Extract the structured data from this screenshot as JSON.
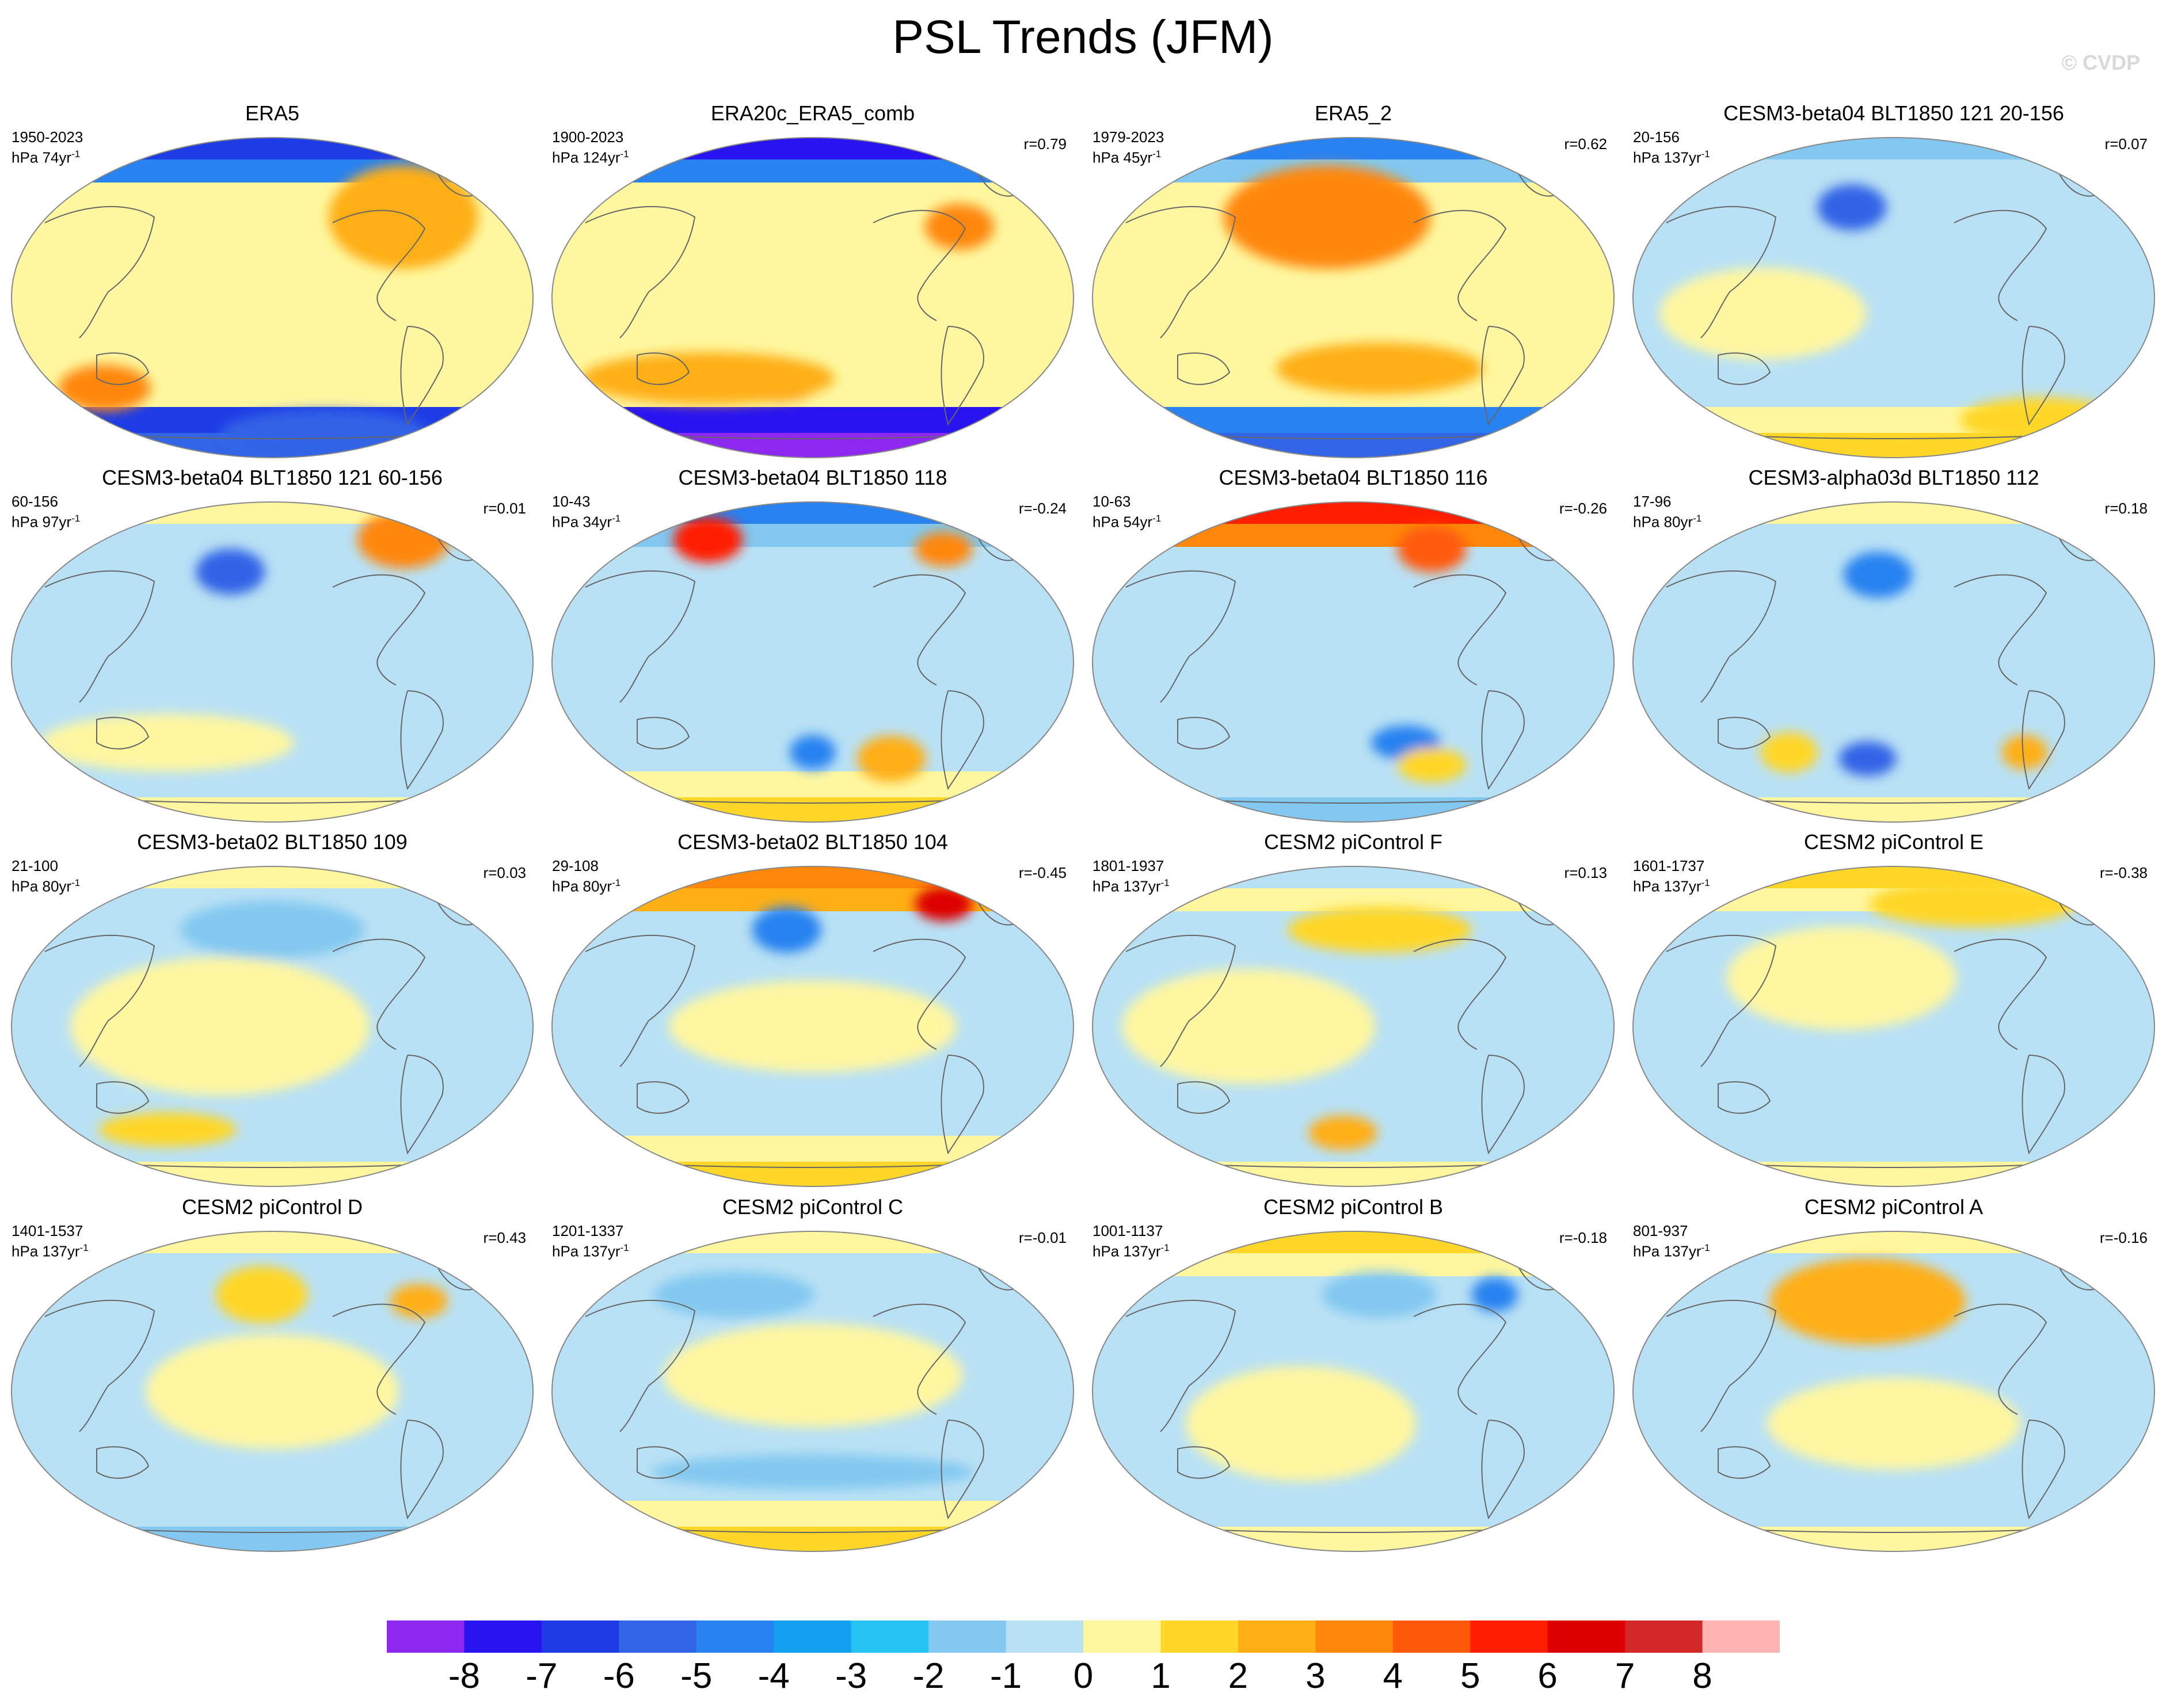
{
  "title": "PSL Trends (JFM)",
  "watermark": "© CVDP",
  "panels": [
    {
      "title": "ERA5",
      "years": "1950-2023",
      "units_prefix": "hPa 74yr",
      "units_exp": "-1",
      "corr": ""
    },
    {
      "title": "ERA20c_ERA5_comb",
      "years": "1900-2023",
      "units_prefix": "hPa 124yr",
      "units_exp": "-1",
      "corr": "r=0.79"
    },
    {
      "title": "ERA5_2",
      "years": "1979-2023",
      "units_prefix": "hPa 45yr",
      "units_exp": "-1",
      "corr": "r=0.62"
    },
    {
      "title": "CESM3-beta04 BLT1850 121 20-156",
      "years": "20-156",
      "units_prefix": "hPa 137yr",
      "units_exp": "-1",
      "corr": "r=0.07"
    },
    {
      "title": "CESM3-beta04 BLT1850 121 60-156",
      "years": "60-156",
      "units_prefix": "hPa 97yr",
      "units_exp": "-1",
      "corr": "r=0.01"
    },
    {
      "title": "CESM3-beta04 BLT1850 118",
      "years": "10-43",
      "units_prefix": "hPa 34yr",
      "units_exp": "-1",
      "corr": "r=-0.24"
    },
    {
      "title": "CESM3-beta04 BLT1850 116",
      "years": "10-63",
      "units_prefix": "hPa 54yr",
      "units_exp": "-1",
      "corr": "r=-0.26"
    },
    {
      "title": "CESM3-alpha03d BLT1850 112",
      "years": "17-96",
      "units_prefix": "hPa 80yr",
      "units_exp": "-1",
      "corr": "r=0.18"
    },
    {
      "title": "CESM3-beta02 BLT1850 109",
      "years": "21-100",
      "units_prefix": "hPa 80yr",
      "units_exp": "-1",
      "corr": "r=0.03"
    },
    {
      "title": "CESM3-beta02 BLT1850 104",
      "years": "29-108",
      "units_prefix": "hPa 80yr",
      "units_exp": "-1",
      "corr": "r=-0.45"
    },
    {
      "title": "CESM2 piControl F",
      "years": "1801-1937",
      "units_prefix": "hPa 137yr",
      "units_exp": "-1",
      "corr": "r=0.13"
    },
    {
      "title": "CESM2 piControl E",
      "years": "1601-1737",
      "units_prefix": "hPa 137yr",
      "units_exp": "-1",
      "corr": "r=-0.38"
    },
    {
      "title": "CESM2 piControl D",
      "years": "1401-1537",
      "units_prefix": "hPa 137yr",
      "units_exp": "-1",
      "corr": "r=0.43"
    },
    {
      "title": "CESM2 piControl C",
      "years": "1201-1337",
      "units_prefix": "hPa 137yr",
      "units_exp": "-1",
      "corr": "r=-0.01"
    },
    {
      "title": "CESM2 piControl B",
      "years": "1001-1137",
      "units_prefix": "hPa 137yr",
      "units_exp": "-1",
      "corr": "r=-0.18"
    },
    {
      "title": "CESM2 piControl A",
      "years": "801-937",
      "units_prefix": "hPa 137yr",
      "units_exp": "-1",
      "corr": "r=-0.16"
    }
  ],
  "colorbar": {
    "labels": [
      "-8",
      "-7",
      "-6",
      "-5",
      "-4",
      "-3",
      "-2",
      "-1",
      "0",
      "1",
      "2",
      "3",
      "4",
      "5",
      "6",
      "7",
      "8"
    ],
    "colors": [
      "#8c28f0",
      "#2814f0",
      "#1e3ce6",
      "#3264e6",
      "#2882f0",
      "#14a0f0",
      "#28c3f5",
      "#82c8f0",
      "#b9e1f5",
      "#fff7a0",
      "#ffd728",
      "#ffaf14",
      "#ff870a",
      "#ff5a0a",
      "#ff1e00",
      "#dc0000",
      "#d22828",
      "#ffb4b4"
    ]
  }
}
